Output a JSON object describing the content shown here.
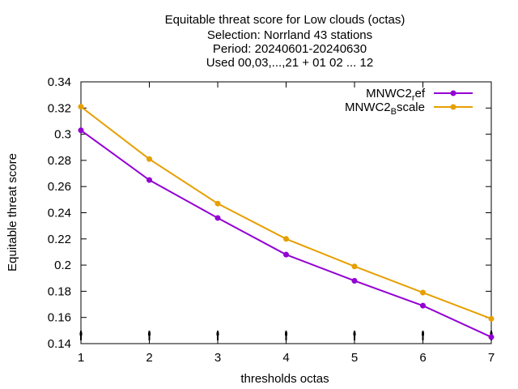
{
  "chart_data": {
    "type": "line",
    "title_lines": [
      "Equitable threat score  for Low clouds (octas)",
      "Selection: Norrland     43 stations",
      "Period: 20240601-20240630",
      "Used 00,03,...,21 + 01 02 ... 12"
    ],
    "xlabel": "thresholds octas",
    "ylabel": "Equitable threat score",
    "x": [
      1,
      2,
      3,
      4,
      5,
      6,
      7
    ],
    "xlim": [
      1,
      7
    ],
    "ylim": [
      0.14,
      0.34
    ],
    "xticks": [
      "1",
      "2",
      "3",
      "4",
      "5",
      "6",
      "7"
    ],
    "yticks": [
      "0.14",
      "0.16",
      "0.18",
      "0.2",
      "0.22",
      "0.24",
      "0.26",
      "0.28",
      "0.3",
      "0.32",
      "0.34"
    ],
    "grid": false,
    "legend_position": "top-right",
    "series": [
      {
        "name_base": "MNWC2",
        "name_sub": "r",
        "name_rest": "ef",
        "color": "#9400d3",
        "values": [
          0.303,
          0.265,
          0.236,
          0.208,
          0.188,
          0.169,
          0.145
        ]
      },
      {
        "name_base": "MNWC2",
        "name_sub": "B",
        "name_rest": "scale",
        "color": "#e69f00",
        "values": [
          0.321,
          0.281,
          0.247,
          0.22,
          0.199,
          0.179,
          0.159
        ]
      }
    ]
  }
}
